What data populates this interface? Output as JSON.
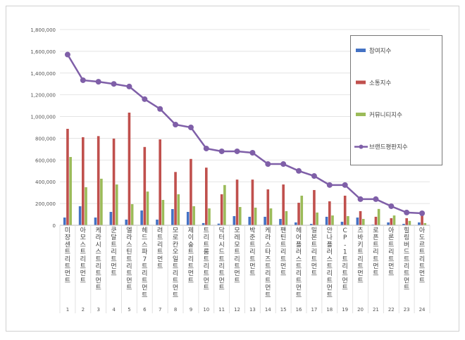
{
  "chart_data": {
    "type": "bar",
    "title": "",
    "xlabel": "",
    "ylabel": "",
    "ylim": [
      0,
      1800000
    ],
    "yticks": [
      "0",
      "200,000",
      "400,000",
      "600,000",
      "800,000",
      "1,000,000",
      "1,200,000",
      "1,400,000",
      "1,600,000",
      "1,800,000"
    ],
    "grid": true,
    "legend_placement": "right",
    "categories": [
      "미쟝센 트리트먼트",
      "아모스 트리트먼트",
      "케라시스 트리트먼트",
      "쿤달 트리트먼트",
      "엘라스틴 트리트먼트",
      "헤드스파7 트리트먼트",
      "려 트리트먼트",
      "모로칸오일 트리트먼트",
      "제이숲 트리트먼트",
      "트리트룸 트리트먼트",
      "닥터시드 트리트먼트",
      "모레모 트리트먼트",
      "박준 트리트먼트",
      "케라스타즈 트리트먼트",
      "팬틴 트리트먼트",
      "헤어플러스 트리트먼트",
      "밀본 트리트먼트",
      "안나플러스 트리트먼트",
      "CP-1 트리트먼트",
      "츠바키 트리트먼트",
      "로픈 트리트먼트",
      "아론 트리트먼트",
      "힐링버드 트리트먼트",
      "아도르 트리트먼트"
    ],
    "ranks": [
      "1",
      "2",
      "3",
      "4",
      "5",
      "6",
      "7",
      "8",
      "9",
      "10",
      "11",
      "12",
      "13",
      "14",
      "15",
      "16",
      "17",
      "18",
      "19",
      "20",
      "21",
      "22",
      "23",
      "24"
    ],
    "series": [
      {
        "name": "참여지수",
        "type": "bar",
        "color": "#4472c4",
        "values": [
          71000,
          175000,
          71000,
          123000,
          52000,
          136000,
          52000,
          149000,
          123000,
          20000,
          15000,
          84000,
          78000,
          78000,
          58000,
          26000,
          13000,
          78000,
          32000,
          71000,
          6000,
          26000,
          13000,
          26000
        ]
      },
      {
        "name": "소통지수",
        "type": "bar",
        "color": "#c0504d",
        "values": [
          887000,
          810000,
          820000,
          797000,
          1036000,
          720000,
          790000,
          490000,
          610000,
          530000,
          285000,
          420000,
          420000,
          330000,
          375000,
          207000,
          324000,
          220000,
          272000,
          130000,
          78000,
          65000,
          65000,
          117000
        ]
      },
      {
        "name": "커뮤니티지수",
        "type": "bar",
        "color": "#9bbb59",
        "values": [
          628000,
          350000,
          428000,
          375000,
          194000,
          310000,
          233000,
          285000,
          175000,
          155000,
          370000,
          168000,
          162000,
          155000,
          130000,
          272000,
          117000,
          90000,
          84000,
          58000,
          150000,
          90000,
          40000,
          20000
        ]
      },
      {
        "name": "브랜드평판지수",
        "type": "line",
        "color": "#7f5fa8",
        "values": [
          1570000,
          1334000,
          1320000,
          1300000,
          1276000,
          1160000,
          1070000,
          926000,
          900000,
          706000,
          680000,
          680000,
          667000,
          563000,
          563000,
          500000,
          453000,
          370000,
          370000,
          240000,
          240000,
          175000,
          117000,
          110000
        ]
      }
    ]
  }
}
